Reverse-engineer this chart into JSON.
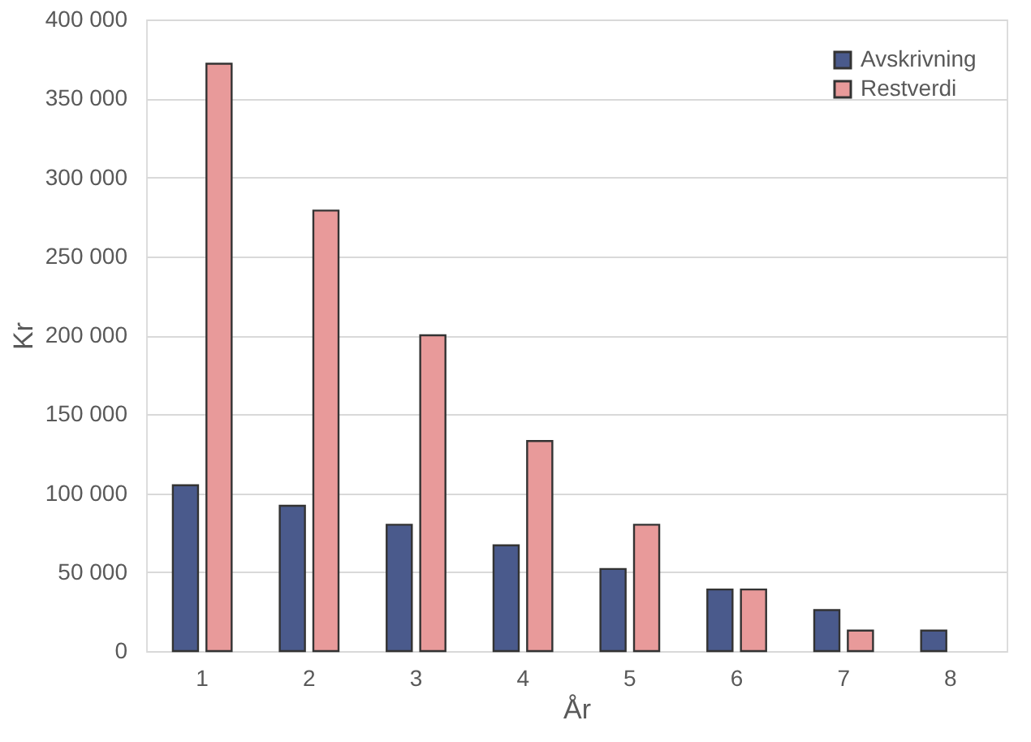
{
  "chart_data": {
    "type": "bar",
    "xlabel": "År",
    "ylabel": "Kr",
    "categories": [
      "1",
      "2",
      "3",
      "4",
      "5",
      "6",
      "7",
      "8"
    ],
    "series": [
      {
        "name": "Avskrivning",
        "color": "#4a5a8c",
        "values": [
          105000,
          92000,
          80000,
          67000,
          52000,
          39000,
          26000,
          13000
        ]
      },
      {
        "name": "Restverdi",
        "color": "#e89a9a",
        "values": [
          372000,
          279000,
          200000,
          133000,
          80000,
          39000,
          13000,
          null
        ]
      }
    ],
    "ylim": [
      0,
      400000
    ],
    "yticks": [
      {
        "value": 0,
        "label": "0"
      },
      {
        "value": 50000,
        "label": "50 000"
      },
      {
        "value": 100000,
        "label": "100 000"
      },
      {
        "value": 150000,
        "label": "150 000"
      },
      {
        "value": 200000,
        "label": "200 000"
      },
      {
        "value": 250000,
        "label": "250 000"
      },
      {
        "value": 300000,
        "label": "300 000"
      },
      {
        "value": 350000,
        "label": "350 000"
      },
      {
        "value": 400000,
        "label": "400 000"
      }
    ],
    "grid": "y",
    "legend": "top right"
  }
}
